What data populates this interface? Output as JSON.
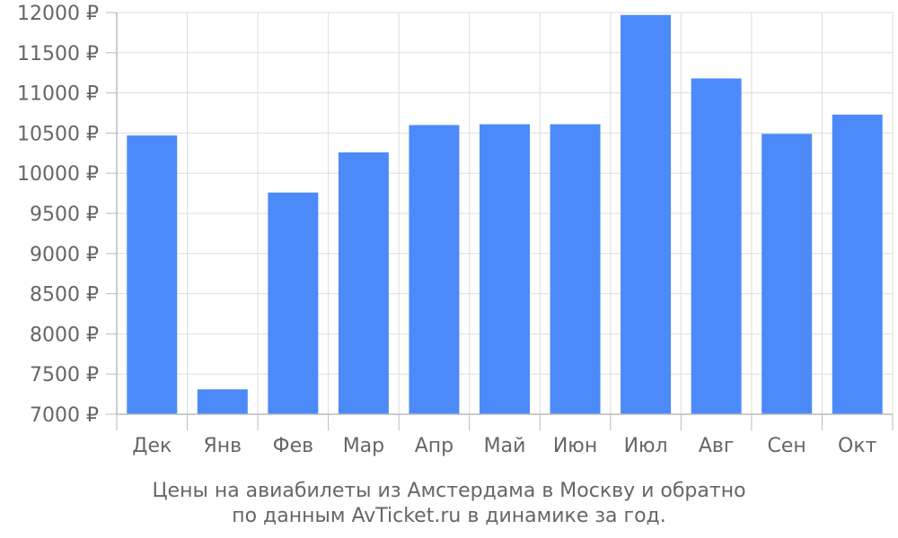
{
  "chart_data": {
    "type": "bar",
    "categories": [
      "Дек",
      "Янв",
      "Фев",
      "Мар",
      "Апр",
      "Май",
      "Июн",
      "Июл",
      "Авг",
      "Сен",
      "Окт"
    ],
    "values": [
      10470,
      7310,
      9760,
      10260,
      10600,
      10610,
      10610,
      11970,
      11180,
      10490,
      10730
    ],
    "ylim": [
      7000,
      12000
    ],
    "yticks": [
      7000,
      7500,
      8000,
      8500,
      9000,
      9500,
      10000,
      10500,
      11000,
      11500,
      12000
    ],
    "ytick_labels": [
      "7000 ₽",
      "7500 ₽",
      "8000 ₽",
      "8500 ₽",
      "9000 ₽",
      "9500 ₽",
      "10000 ₽",
      "10500 ₽",
      "11000 ₽",
      "11500 ₽",
      "12000 ₽"
    ],
    "grid": true,
    "bar_color": "#4d8af9",
    "grid_color": "#dddddd",
    "axis_color": "#bbbbbb",
    "text_color": "#666666"
  },
  "caption": {
    "line1": "Цены на авиабилеты из Амстердама в Москву и обратно",
    "line2": "по данным AvTicket.ru в динамике за год."
  }
}
